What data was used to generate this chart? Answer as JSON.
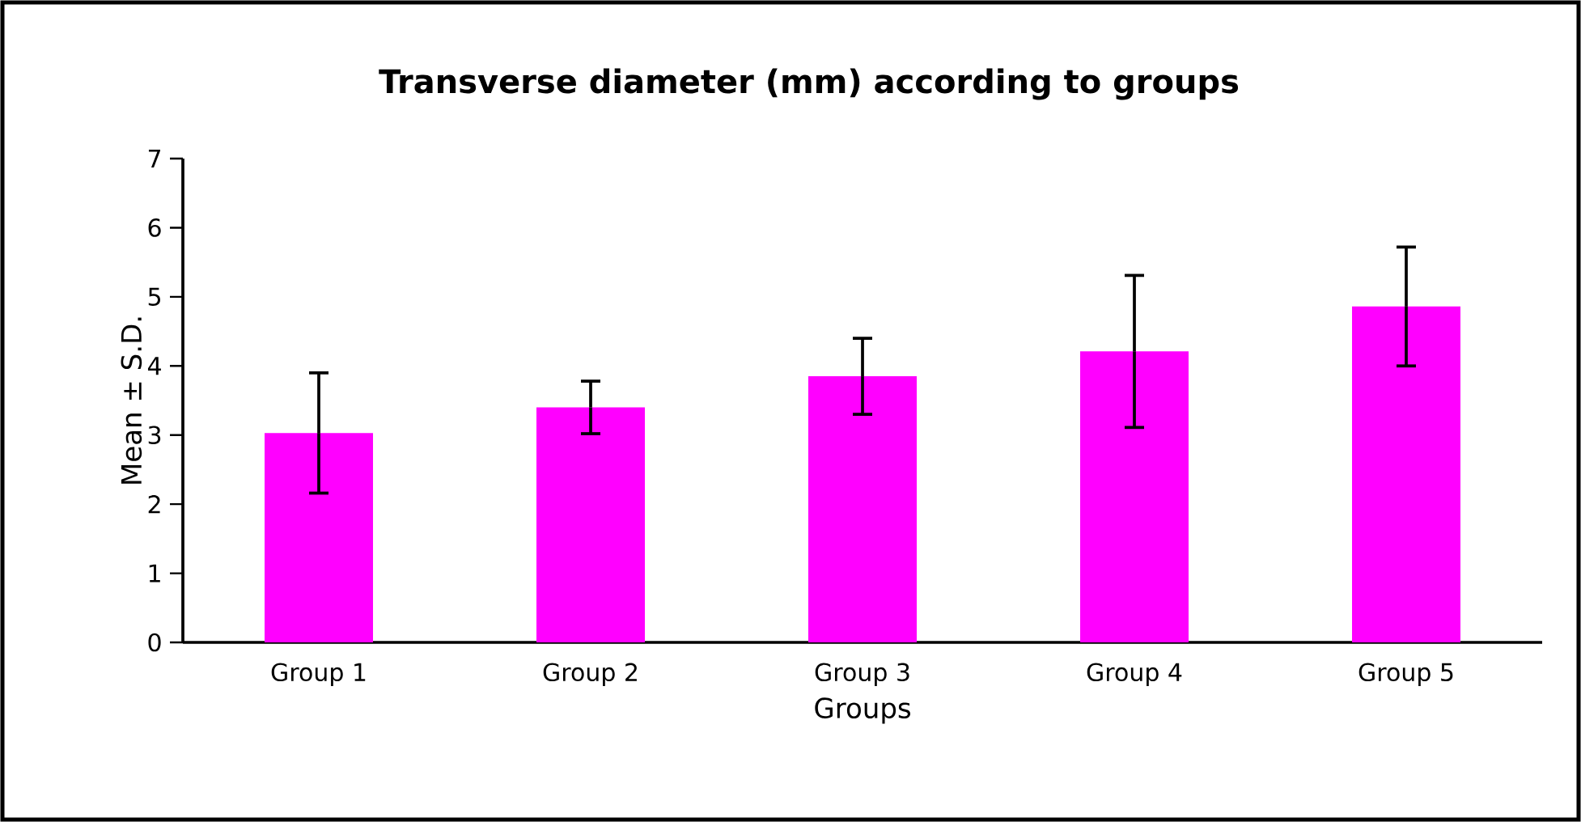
{
  "chart_data": {
    "type": "bar",
    "title": "Transverse diameter (mm) according to groups",
    "xlabel": "Groups",
    "ylabel": "Mean ± S.D.",
    "categories": [
      "Group 1",
      "Group 2",
      "Group 3",
      "Group 4",
      "Group 5"
    ],
    "values": [
      3.03,
      3.4,
      3.85,
      4.21,
      4.86
    ],
    "errors": [
      0.87,
      0.38,
      0.55,
      1.1,
      0.86
    ],
    "color": "#ff00ff",
    "ylim": [
      0,
      7
    ],
    "yticks": [
      0,
      1,
      2,
      3,
      4,
      5,
      6,
      7
    ],
    "grid": false
  }
}
